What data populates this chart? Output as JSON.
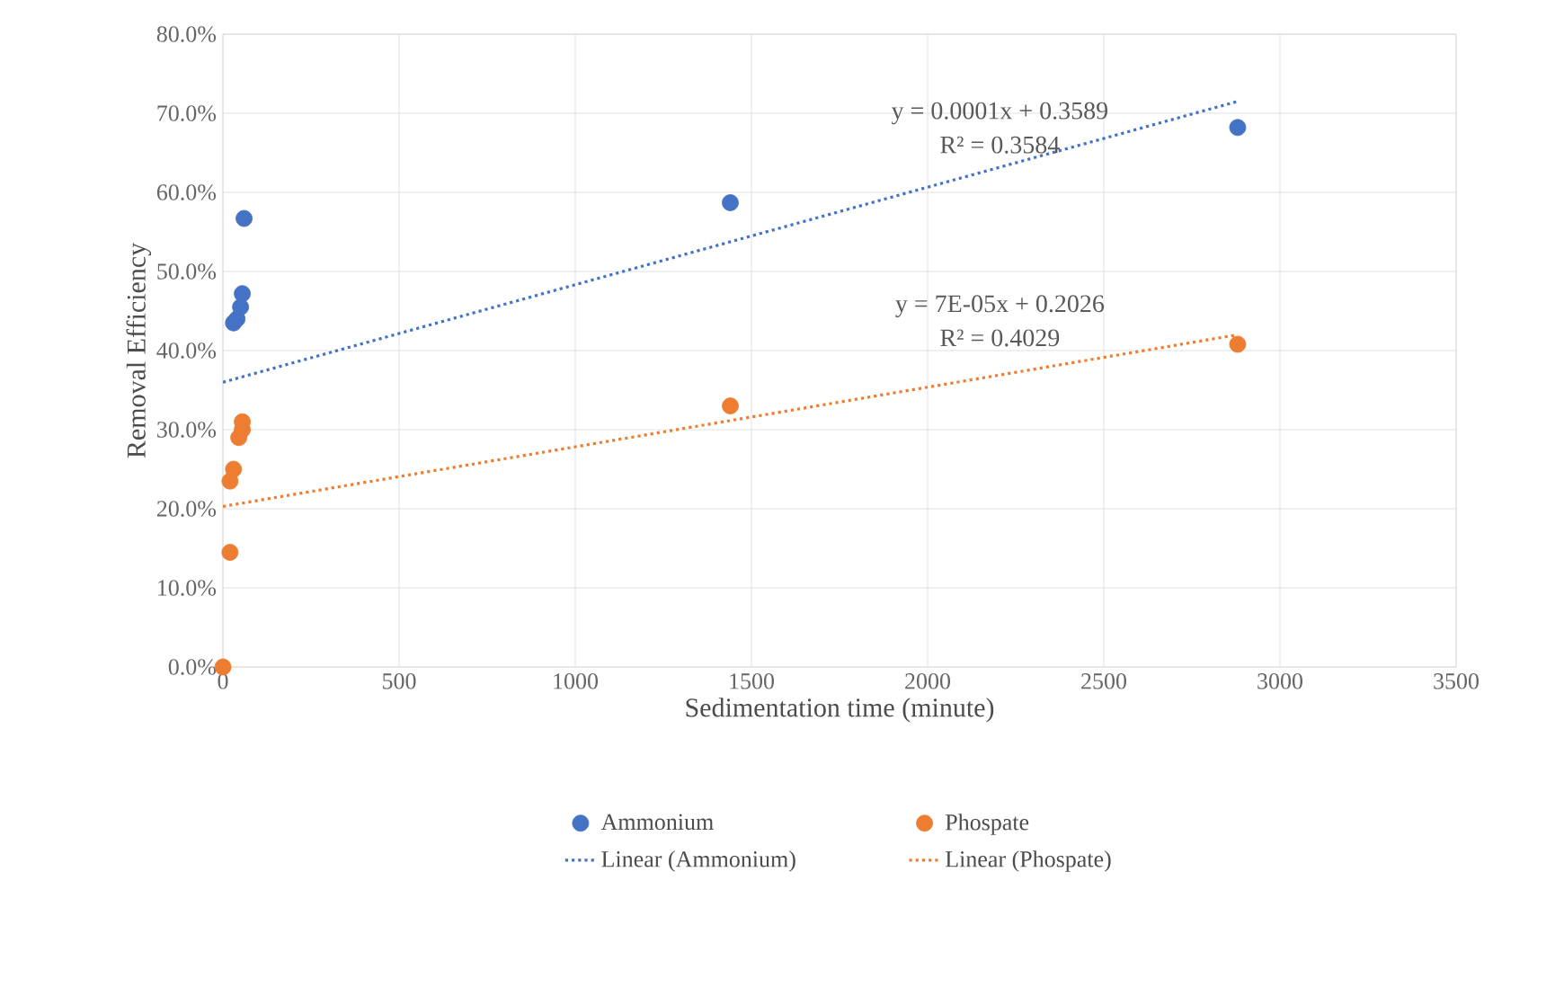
{
  "chart_data": {
    "type": "scatter",
    "xlabel": "Sedimentation time (minute)",
    "ylabel": "Removal Efficiency",
    "xlim": [
      0,
      3500
    ],
    "xticks": [
      0,
      500,
      1000,
      1500,
      2000,
      2500,
      3000,
      3500
    ],
    "ylim": [
      0,
      0.8
    ],
    "yticks": [
      {
        "value": 0,
        "label": "0.0%"
      },
      {
        "value": 0.1,
        "label": "10.0%"
      },
      {
        "value": 0.2,
        "label": "20.0%"
      },
      {
        "value": 0.3,
        "label": "30.0%"
      },
      {
        "value": 0.4,
        "label": "40.0%"
      },
      {
        "value": 0.5,
        "label": "50.0%"
      },
      {
        "value": 0.6,
        "label": "60.0%"
      },
      {
        "value": 0.7,
        "label": "70.0%"
      },
      {
        "value": 0.8,
        "label": "80.0%"
      }
    ],
    "grid": true,
    "legend": "bottom",
    "marker": "circle",
    "series": [
      {
        "name": "Ammonium",
        "color": "#4472c4",
        "x": [
          30,
          40,
          50,
          55,
          60,
          1440,
          2880
        ],
        "values": [
          0.435,
          0.44,
          0.455,
          0.472,
          0.567,
          0.587,
          0.682
        ]
      },
      {
        "name": "Phospate",
        "color": "#ed7d31",
        "x": [
          0,
          20,
          20,
          30,
          45,
          55,
          55,
          1440,
          2880
        ],
        "values": [
          0.0,
          0.145,
          0.235,
          0.25,
          0.29,
          0.3,
          0.31,
          0.33,
          0.408
        ]
      },
      {
        "name": "Linear (Ammonium)",
        "type": "line",
        "line_style": "dotted",
        "marker": "none",
        "color": "#4472c4",
        "x": [
          0,
          2880
        ],
        "values": [
          0.36,
          0.715
        ]
      },
      {
        "name": "Linear (Phospate)",
        "type": "line",
        "line_style": "dotted",
        "marker": "none",
        "color": "#ed7d31",
        "x": [
          0,
          2880
        ],
        "values": [
          0.203,
          0.42
        ]
      }
    ],
    "annotations": [
      "y = 0.0001x + 0.3589",
      "R² = 0.3584",
      "y = 7E-05x + 0.2026",
      "R² = 0.4029"
    ]
  }
}
